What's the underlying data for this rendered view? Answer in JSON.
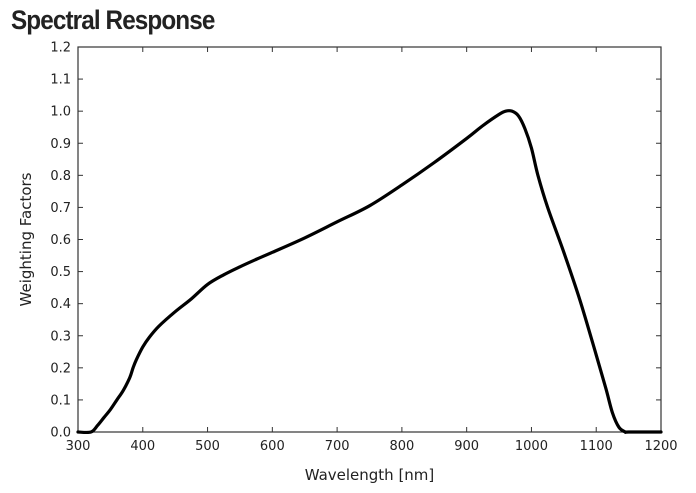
{
  "chart_data": {
    "type": "line",
    "title": "Spectral Response",
    "xlabel": "Wavelength [nm]",
    "ylabel": "Weighting Factors",
    "xlim": [
      300,
      1200
    ],
    "ylim": [
      0.0,
      1.2
    ],
    "xticks": [
      300,
      400,
      500,
      600,
      700,
      800,
      900,
      1000,
      1100,
      1200
    ],
    "yticks": [
      0.0,
      0.1,
      0.2,
      0.3,
      0.4,
      0.5,
      0.6,
      0.7,
      0.8,
      0.9,
      1.0,
      1.1,
      1.2
    ],
    "grid": false,
    "line_color": "#000000",
    "series": [
      {
        "x": [
          300,
          320,
          330,
          340,
          350,
          360,
          370,
          380,
          385,
          390,
          400,
          410,
          425,
          450,
          475,
          500,
          525,
          550,
          575,
          600,
          650,
          700,
          750,
          800,
          850,
          900,
          925,
          950,
          960,
          970,
          980,
          990,
          1000,
          1010,
          1025,
          1050,
          1075,
          1100,
          1115,
          1125,
          1135,
          1145,
          1150,
          1200
        ],
        "y": [
          0.0,
          0.0,
          0.02,
          0.045,
          0.07,
          0.1,
          0.13,
          0.17,
          0.2,
          0.225,
          0.265,
          0.295,
          0.33,
          0.375,
          0.415,
          0.46,
          0.49,
          0.515,
          0.538,
          0.56,
          0.605,
          0.655,
          0.705,
          0.77,
          0.84,
          0.915,
          0.955,
          0.99,
          1.0,
          1.0,
          0.985,
          0.945,
          0.885,
          0.8,
          0.7,
          0.56,
          0.41,
          0.24,
          0.135,
          0.06,
          0.015,
          0.0,
          0.0,
          0.0
        ]
      }
    ]
  }
}
